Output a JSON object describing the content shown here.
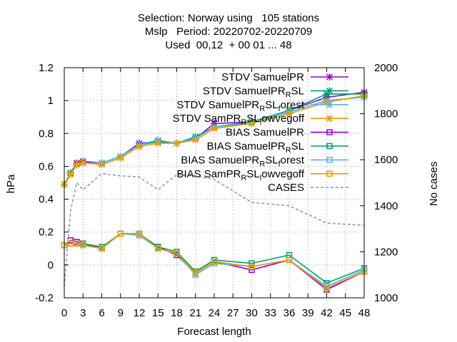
{
  "chart_data": {
    "type": "line",
    "title_lines": [
      "Selection: Norway using   105 stations",
      "Mslp   Period: 20220702-20220709",
      "Used  00,12  + 00 01 ... 48"
    ],
    "xlabel": "Forecast length",
    "ylabel": "hPa",
    "y2label": "No cases",
    "xlim": [
      0,
      48
    ],
    "ylim": [
      -0.2,
      1.2
    ],
    "y2lim": [
      1000,
      2000
    ],
    "xticks": [
      "0",
      "3",
      "6",
      "9",
      "12",
      "15",
      "18",
      "21",
      "24",
      "27",
      "30",
      "33",
      "36",
      "39",
      "42",
      "45",
      "48"
    ],
    "yticks": [
      "-0.2",
      "0",
      "0.2",
      "0.4",
      "0.6",
      "0.8",
      "1",
      "1.2"
    ],
    "y2ticks": [
      "1000",
      "1200",
      "1400",
      "1600",
      "1800",
      "2000"
    ],
    "grid": true,
    "legend_position": "top-right",
    "x": [
      0,
      1,
      2,
      3,
      6,
      9,
      12,
      15,
      18,
      21,
      24,
      30,
      36,
      42,
      48
    ],
    "series": [
      {
        "label_parts": [
          [
            "STDV SamuelPR",
            ""
          ]
        ],
        "color": "#9400d3",
        "marker": "x",
        "axis": "y",
        "values": [
          0.49,
          0.56,
          0.62,
          0.63,
          0.62,
          0.66,
          0.74,
          0.75,
          0.74,
          0.77,
          0.86,
          0.87,
          0.94,
          1.02,
          1.05
        ]
      },
      {
        "label_parts": [
          [
            "STDV SamuelPR",
            ""
          ],
          [
            "R",
            "sub"
          ],
          [
            "SL",
            ""
          ]
        ],
        "color": "#009e73",
        "marker": "x",
        "axis": "y",
        "values": [
          0.49,
          0.56,
          0.61,
          0.62,
          0.62,
          0.66,
          0.73,
          0.75,
          0.74,
          0.78,
          0.84,
          0.87,
          0.94,
          1.04,
          1.04
        ]
      },
      {
        "label_parts": [
          [
            "STDV SamuelPR",
            ""
          ],
          [
            "R",
            "sub"
          ],
          [
            "SL",
            ""
          ],
          [
            "f",
            "sub"
          ],
          [
            "orest",
            ""
          ]
        ],
        "color": "#56b4e9",
        "marker": "x",
        "axis": "y",
        "values": [
          0.49,
          0.55,
          0.61,
          0.62,
          0.62,
          0.66,
          0.73,
          0.76,
          0.74,
          0.77,
          0.84,
          0.86,
          0.93,
          1.0,
          1.02
        ]
      },
      {
        "label_parts": [
          [
            "STDV SamPR",
            ""
          ],
          [
            "R",
            "sub"
          ],
          [
            "SL",
            ""
          ],
          [
            "l",
            "sub"
          ],
          [
            "owvegoff",
            ""
          ]
        ],
        "color": "#e69f00",
        "marker": "x",
        "axis": "y",
        "values": [
          0.49,
          0.55,
          0.61,
          0.62,
          0.61,
          0.65,
          0.72,
          0.74,
          0.74,
          0.76,
          0.83,
          0.86,
          0.92,
          0.99,
          1.03
        ]
      },
      {
        "label_parts": [
          [
            "BIAS SamuelPR",
            ""
          ]
        ],
        "color": "#9400d3",
        "marker": "square",
        "axis": "y",
        "values": [
          0.12,
          0.15,
          0.14,
          0.13,
          0.1,
          0.19,
          0.19,
          0.11,
          0.06,
          -0.05,
          0.02,
          -0.03,
          0.03,
          -0.15,
          -0.04
        ]
      },
      {
        "label_parts": [
          [
            "BIAS SamuelPR",
            ""
          ],
          [
            "R",
            "sub"
          ],
          [
            "SL",
            ""
          ]
        ],
        "color": "#009e73",
        "marker": "square",
        "axis": "y",
        "values": [
          0.12,
          0.13,
          0.13,
          0.13,
          0.11,
          0.19,
          0.19,
          0.11,
          0.08,
          -0.04,
          0.03,
          0.01,
          0.06,
          -0.11,
          -0.02
        ]
      },
      {
        "label_parts": [
          [
            "BIAS SamuelPR",
            ""
          ],
          [
            "R",
            "sub"
          ],
          [
            "SL",
            ""
          ],
          [
            "f",
            "sub"
          ],
          [
            "orest",
            ""
          ]
        ],
        "color": "#56b4e9",
        "marker": "square",
        "axis": "y",
        "values": [
          0.12,
          0.13,
          0.13,
          0.12,
          0.1,
          0.19,
          0.18,
          0.1,
          0.07,
          -0.06,
          0.01,
          -0.01,
          0.03,
          -0.13,
          -0.03
        ]
      },
      {
        "label_parts": [
          [
            "BIAS SamPR",
            ""
          ],
          [
            "R",
            "sub"
          ],
          [
            "SL",
            ""
          ],
          [
            "l",
            "sub"
          ],
          [
            "owvegoff",
            ""
          ]
        ],
        "color": "#e69f00",
        "marker": "square",
        "axis": "y",
        "values": [
          0.12,
          0.13,
          0.13,
          0.12,
          0.1,
          0.19,
          0.19,
          0.1,
          0.07,
          -0.05,
          0.02,
          -0.01,
          0.03,
          -0.14,
          -0.04
        ]
      },
      {
        "label_parts": [
          [
            "CASES",
            ""
          ]
        ],
        "color": "#999999",
        "marker": "none",
        "axis": "y2",
        "dashed": true,
        "values": [
          1050,
          1380,
          1500,
          1470,
          1540,
          1530,
          1525,
          1470,
          1535,
          1530,
          1515,
          1415,
          1400,
          1325,
          1315
        ]
      }
    ]
  }
}
